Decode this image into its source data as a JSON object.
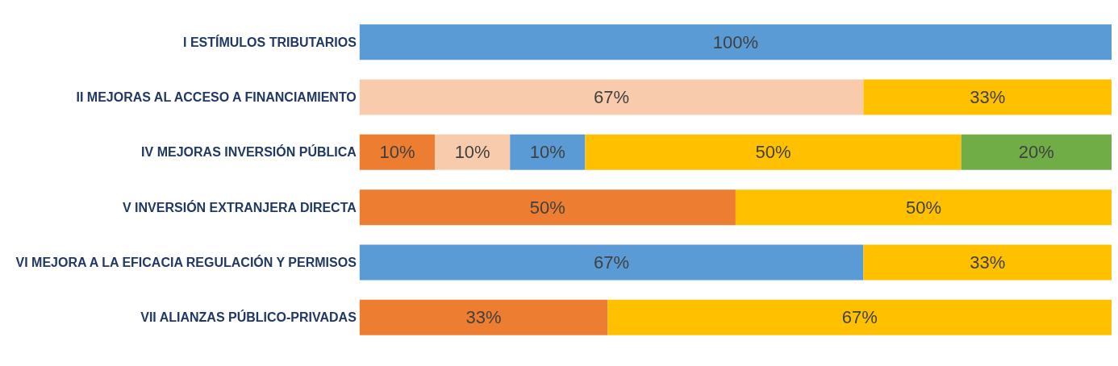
{
  "chart_data": {
    "type": "bar",
    "orientation": "horizontal",
    "stacked": true,
    "tick_labels": "y",
    "categories": [
      "I ESTÍMULOS TRIBUTARIOS",
      "II MEJORAS AL ACCESO A FINANCIAMIENTO",
      "IV MEJORAS INVERSIÓN PÚBLICA",
      "V INVERSIÓN EXTRANJERA DIRECTA",
      "VI MEJORA A LA EFICACIA REGULACIÓN Y PERMISOS",
      "VII ALIANZAS PÚBLICO-PRIVADAS"
    ],
    "series": [
      {
        "color": "#ed7d31",
        "values": [
          null,
          null,
          10,
          50,
          null,
          33
        ],
        "value_labels": [
          null,
          null,
          "10%",
          "50%",
          null,
          "33%"
        ]
      },
      {
        "color": "#f8cbad",
        "values": [
          null,
          67,
          10,
          null,
          null,
          null
        ],
        "value_labels": [
          null,
          "67%",
          "10%",
          null,
          null,
          null
        ]
      },
      {
        "color": "#5b9bd5",
        "values": [
          100,
          null,
          10,
          null,
          67,
          null
        ],
        "value_labels": [
          "100%",
          null,
          "10%",
          null,
          "67%",
          null
        ]
      },
      {
        "color": "#ffc000",
        "values": [
          null,
          33,
          50,
          50,
          33,
          67
        ],
        "value_labels": [
          null,
          "33%",
          "50%",
          "50%",
          "33%",
          "67%"
        ]
      },
      {
        "color": "#70ad47",
        "values": [
          null,
          null,
          20,
          null,
          null,
          null
        ],
        "value_labels": [
          null,
          null,
          "20%",
          null,
          null,
          null
        ]
      }
    ]
  }
}
